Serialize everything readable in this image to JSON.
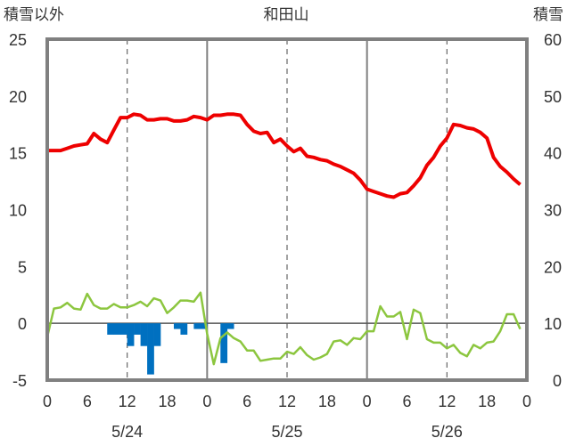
{
  "chart_data": {
    "type": "line",
    "title": "和田山",
    "left_axis_label": "積雪以外",
    "right_axis_label": "積雪",
    "y_left": {
      "min": -5,
      "max": 25,
      "ticks": [
        -5,
        0,
        5,
        10,
        15,
        20,
        25
      ]
    },
    "y_right": {
      "min": 0,
      "max": 60,
      "ticks": [
        0,
        10,
        20,
        30,
        40,
        50,
        60
      ]
    },
    "x": {
      "min": 0,
      "max": 72,
      "tick_step": 6,
      "tick_labels": [
        "0",
        "6",
        "12",
        "18",
        "0",
        "6",
        "12",
        "18",
        "0",
        "6",
        "12",
        "18",
        "0"
      ]
    },
    "day_labels": [
      {
        "hour": 12,
        "label": "5/24"
      },
      {
        "hour": 36,
        "label": "5/25"
      },
      {
        "hour": 60,
        "label": "5/26"
      }
    ],
    "grid": "dashed vertical lines at 12h, solid day separators at 24h and 48h",
    "colors": {
      "temperature": "#ee0000",
      "sunshine_precip_line": "#8cc63f",
      "bars": "#0070c0",
      "frame": "#808080"
    },
    "series": [
      {
        "axis": "left",
        "color": "#ee0000",
        "points": [
          [
            0,
            15.2
          ],
          [
            1,
            15.2
          ],
          [
            2,
            15.2
          ],
          [
            3,
            15.4
          ],
          [
            4,
            15.6
          ],
          [
            5,
            15.7
          ],
          [
            6,
            15.8
          ],
          [
            7,
            16.7
          ],
          [
            8,
            16.2
          ],
          [
            9,
            15.9
          ],
          [
            10,
            17.0
          ],
          [
            11,
            18.1
          ],
          [
            12,
            18.1
          ],
          [
            13,
            18.4
          ],
          [
            14,
            18.3
          ],
          [
            15,
            17.9
          ],
          [
            16,
            17.9
          ],
          [
            17,
            18.0
          ],
          [
            18,
            18.0
          ],
          [
            19,
            17.8
          ],
          [
            20,
            17.8
          ],
          [
            21,
            17.9
          ],
          [
            22,
            18.2
          ],
          [
            23,
            18.1
          ],
          [
            24,
            17.9
          ],
          [
            25,
            18.3
          ],
          [
            26,
            18.3
          ],
          [
            27,
            18.4
          ],
          [
            28,
            18.4
          ],
          [
            29,
            18.3
          ],
          [
            30,
            17.5
          ],
          [
            31,
            16.9
          ],
          [
            32,
            16.7
          ],
          [
            33,
            16.8
          ],
          [
            34,
            15.9
          ],
          [
            35,
            16.2
          ],
          [
            36,
            15.6
          ],
          [
            37,
            15.1
          ],
          [
            38,
            15.4
          ],
          [
            39,
            14.7
          ],
          [
            40,
            14.6
          ],
          [
            41,
            14.4
          ],
          [
            42,
            14.3
          ],
          [
            43,
            14.0
          ],
          [
            44,
            13.8
          ],
          [
            45,
            13.5
          ],
          [
            46,
            13.2
          ],
          [
            47,
            12.6
          ],
          [
            48,
            11.8
          ],
          [
            49,
            11.6
          ],
          [
            50,
            11.4
          ],
          [
            51,
            11.2
          ],
          [
            52,
            11.1
          ],
          [
            53,
            11.4
          ],
          [
            54,
            11.5
          ],
          [
            55,
            12.1
          ],
          [
            56,
            12.8
          ],
          [
            57,
            13.9
          ],
          [
            58,
            14.6
          ],
          [
            59,
            15.6
          ],
          [
            60,
            16.3
          ],
          [
            61,
            17.5
          ],
          [
            62,
            17.4
          ],
          [
            63,
            17.2
          ],
          [
            64,
            17.1
          ],
          [
            65,
            16.8
          ],
          [
            66,
            16.3
          ],
          [
            67,
            14.6
          ],
          [
            68,
            13.8
          ],
          [
            69,
            13.3
          ],
          [
            70,
            12.7
          ],
          [
            71,
            12.2
          ]
        ]
      },
      {
        "axis": "left",
        "color": "#8cc63f",
        "points": [
          [
            0,
            -1.2
          ],
          [
            1,
            1.3
          ],
          [
            2,
            1.4
          ],
          [
            3,
            1.8
          ],
          [
            4,
            1.3
          ],
          [
            5,
            1.2
          ],
          [
            6,
            2.6
          ],
          [
            7,
            1.6
          ],
          [
            8,
            1.3
          ],
          [
            9,
            1.3
          ],
          [
            10,
            1.7
          ],
          [
            11,
            1.4
          ],
          [
            12,
            1.4
          ],
          [
            13,
            1.6
          ],
          [
            14,
            1.9
          ],
          [
            15,
            1.5
          ],
          [
            16,
            2.2
          ],
          [
            17,
            2.0
          ],
          [
            18,
            0.9
          ],
          [
            19,
            1.4
          ],
          [
            20,
            2.0
          ],
          [
            21,
            2.0
          ],
          [
            22,
            1.9
          ],
          [
            23,
            2.7
          ],
          [
            24,
            -0.9
          ],
          [
            25,
            -3.6
          ],
          [
            26,
            -1.3
          ],
          [
            27,
            -0.8
          ],
          [
            28,
            -1.3
          ],
          [
            29,
            -1.6
          ],
          [
            30,
            -2.4
          ],
          [
            31,
            -2.4
          ],
          [
            32,
            -3.3
          ],
          [
            33,
            -3.2
          ],
          [
            34,
            -3.1
          ],
          [
            35,
            -3.1
          ],
          [
            36,
            -2.5
          ],
          [
            37,
            -2.7
          ],
          [
            38,
            -2.1
          ],
          [
            39,
            -2.8
          ],
          [
            40,
            -3.2
          ],
          [
            41,
            -3.0
          ],
          [
            42,
            -2.7
          ],
          [
            43,
            -1.6
          ],
          [
            44,
            -1.5
          ],
          [
            45,
            -1.9
          ],
          [
            46,
            -1.3
          ],
          [
            47,
            -1.4
          ],
          [
            48,
            -0.7
          ],
          [
            49,
            -0.7
          ],
          [
            50,
            1.5
          ],
          [
            51,
            0.6
          ],
          [
            52,
            0.6
          ],
          [
            53,
            1.0
          ],
          [
            54,
            -1.4
          ],
          [
            55,
            1.2
          ],
          [
            56,
            0.9
          ],
          [
            57,
            -1.4
          ],
          [
            58,
            -1.7
          ],
          [
            59,
            -1.7
          ],
          [
            60,
            -2.2
          ],
          [
            61,
            -1.9
          ],
          [
            62,
            -2.6
          ],
          [
            63,
            -2.9
          ],
          [
            64,
            -1.9
          ],
          [
            65,
            -2.2
          ],
          [
            66,
            -1.7
          ],
          [
            67,
            -1.6
          ],
          [
            68,
            -0.7
          ],
          [
            69,
            0.8
          ],
          [
            70,
            0.8
          ],
          [
            71,
            -0.5
          ]
        ]
      }
    ],
    "bars": {
      "axis": "left",
      "baseline": 0,
      "color": "#0070c0",
      "values": [
        [
          9,
          -1
        ],
        [
          10,
          -1
        ],
        [
          11,
          -1
        ],
        [
          12,
          -2
        ],
        [
          13,
          -1
        ],
        [
          14,
          -2
        ],
        [
          15,
          -4.5
        ],
        [
          16,
          -2
        ],
        [
          19,
          -0.5
        ],
        [
          20,
          -1
        ],
        [
          22,
          -0.5
        ],
        [
          23,
          -0.5
        ],
        [
          26,
          -3.5
        ],
        [
          27,
          -0.5
        ]
      ]
    }
  }
}
